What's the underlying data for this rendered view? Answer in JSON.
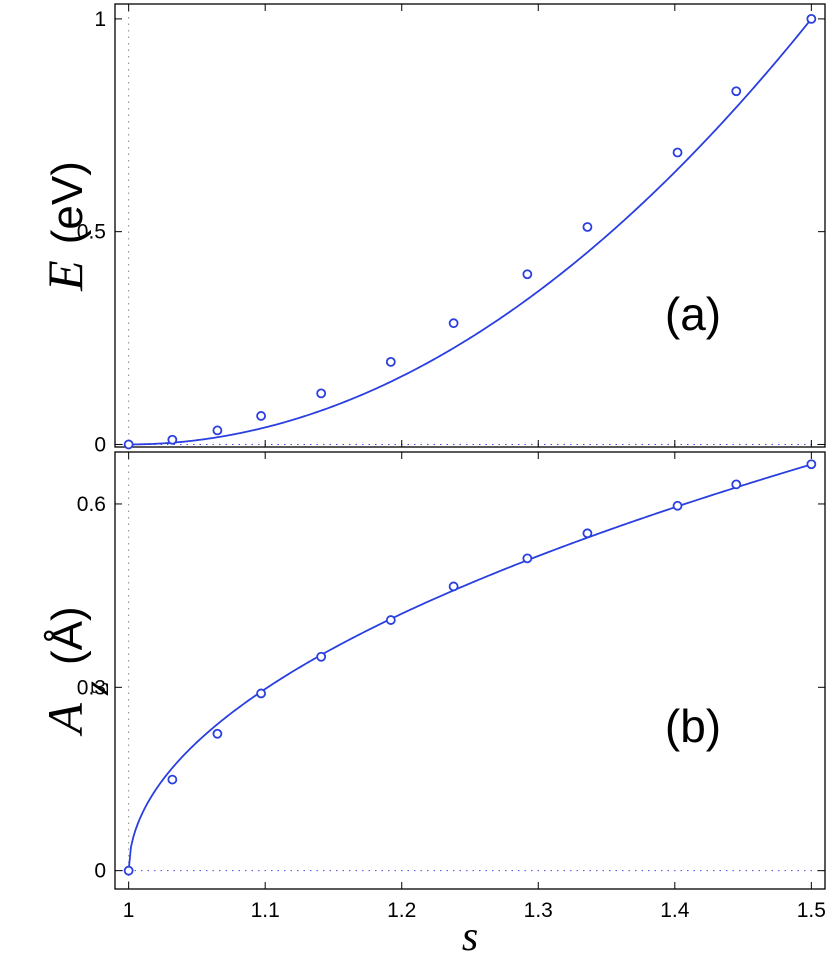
{
  "chart_data": [
    {
      "type": "line",
      "panel_label": "(a)",
      "ylabel_symbol": "E",
      "ylabel_unit": "(eV)",
      "xlabel": "",
      "xlim": [
        0.99,
        1.51
      ],
      "ylim": [
        -0.006,
        1.035
      ],
      "xticks": [
        "1",
        "1.1",
        "1.2",
        "1.3",
        "1.4",
        "1.5"
      ],
      "yticks": [
        "0",
        "0.5",
        "1"
      ],
      "ytick_values": [
        0,
        0.5,
        1
      ],
      "series": [
        {
          "marker": "open-circle",
          "x": [
            1.0,
            1.032,
            1.065,
            1.097,
            1.141,
            1.192,
            1.238,
            1.292,
            1.336,
            1.402,
            1.445,
            1.5
          ],
          "y": [
            0.0,
            0.011,
            0.033,
            0.067,
            0.12,
            0.194,
            0.285,
            0.4,
            0.511,
            0.686,
            0.83,
            1.0
          ]
        }
      ],
      "fit_curve": {
        "type": "power",
        "x0": 1.0,
        "amplitude": 4.0,
        "exponent": 2.0
      }
    },
    {
      "type": "line",
      "panel_label": "(b)",
      "ylabel_symbol": "A",
      "ylabel_subscript": "z",
      "ylabel_unit": "(Å)",
      "xlabel": "s",
      "xlim": [
        0.99,
        1.51
      ],
      "ylim": [
        -0.03,
        0.685
      ],
      "xticks": [
        "1",
        "1.1",
        "1.2",
        "1.3",
        "1.4",
        "1.5"
      ],
      "yticks": [
        "0",
        "0.3",
        "0.6"
      ],
      "ytick_values": [
        0,
        0.3,
        0.6
      ],
      "series": [
        {
          "marker": "open-circle",
          "x": [
            1.0,
            1.032,
            1.065,
            1.097,
            1.141,
            1.192,
            1.238,
            1.292,
            1.336,
            1.402,
            1.445,
            1.5
          ],
          "y": [
            0.0,
            0.149,
            0.224,
            0.29,
            0.35,
            0.41,
            0.465,
            0.511,
            0.552,
            0.597,
            0.632,
            0.665
          ]
        }
      ],
      "fit_curve": {
        "type": "power",
        "x0": 1.0,
        "amplitude": 0.94,
        "exponent": 0.5
      }
    }
  ]
}
